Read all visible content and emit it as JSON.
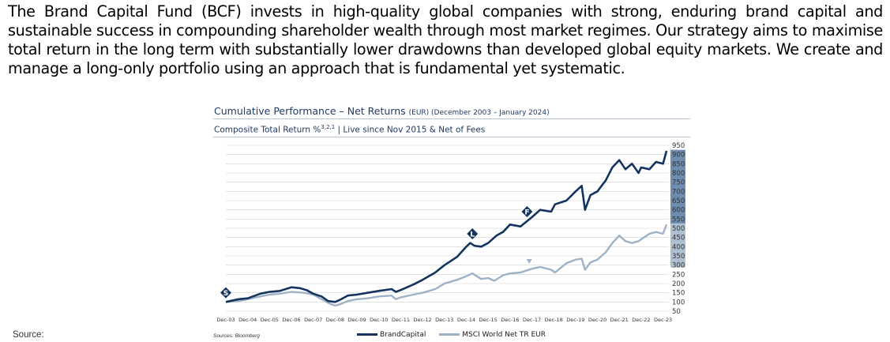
{
  "intro_text": "The Brand Capital Fund (BCF) invests in high-quality global companies with strong, enduring brand capital and sustainable success in compounding shareholder wealth through most market regimes. Our strategy aims to maximise total return in the long term with substantially lower drawdowns than developed global equity markets. We create and manage a long-only portfolio using an approach that is fundamental yet systematic.",
  "source_label": "Source:",
  "colors": {
    "brand": "#14345f",
    "msci": "#9fb2c5",
    "band_dark": "#6f8db0",
    "band_light": "#aebfd2",
    "grid": "#d0d0d0"
  },
  "chart_data": {
    "type": "line",
    "title": "Cumulative Performance – Net Returns",
    "title_small": "(EUR) (December 2003 – January 2024)",
    "subtitle_pre": "Composite Total Return %",
    "subtitle_sup": "3,2,1",
    "subtitle_post": " | Live since Nov 2015 & Net of Fees",
    "sources_note": "Sources: Bloomberg",
    "x_tick_labels": [
      "Dec-03",
      "Dec-04",
      "Dec-05",
      "Dec-06",
      "Dec-07",
      "Dec-08",
      "Dec-09",
      "Dec-10",
      "Dec-11",
      "Dec-12",
      "Dec-13",
      "Dec-14",
      "Dec-15",
      "Dec-16",
      "Dec-17",
      "Dec-18",
      "Dec-19",
      "Dec-20",
      "Dec-21",
      "Dec-22",
      "Dec-23"
    ],
    "y_ticks": [
      50,
      100,
      150,
      200,
      250,
      300,
      350,
      400,
      450,
      500,
      550,
      600,
      650,
      700,
      750,
      800,
      850,
      900,
      950
    ],
    "ylim": [
      50,
      950
    ],
    "xlim": [
      2003.92,
      2024.08
    ],
    "grid": true,
    "legend_position": "bottom",
    "series": [
      {
        "name": "BrandCapital",
        "x": [
          2003.92,
          2004.5,
          2004.92,
          2005.5,
          2005.92,
          2006.4,
          2006.92,
          2007.3,
          2007.6,
          2007.92,
          2008.3,
          2008.6,
          2008.92,
          2009.2,
          2009.5,
          2009.92,
          2010.4,
          2010.92,
          2011.5,
          2011.7,
          2011.92,
          2012.5,
          2012.92,
          2013.5,
          2013.92,
          2014.5,
          2014.92,
          2015.1,
          2015.3,
          2015.6,
          2015.92,
          2016.3,
          2016.6,
          2016.92,
          2017.4,
          2017.92,
          2018.3,
          2018.8,
          2018.98,
          2019.5,
          2019.92,
          2020.2,
          2020.35,
          2020.6,
          2020.92,
          2021.3,
          2021.6,
          2021.92,
          2022.2,
          2022.5,
          2022.8,
          2022.92,
          2023.3,
          2023.6,
          2023.92,
          2024.08
        ],
        "y": [
          100,
          115,
          120,
          145,
          155,
          160,
          180,
          175,
          165,
          145,
          130,
          105,
          100,
          115,
          135,
          140,
          150,
          160,
          170,
          155,
          165,
          195,
          220,
          260,
          300,
          345,
          400,
          420,
          405,
          400,
          420,
          460,
          480,
          520,
          510,
          560,
          600,
          590,
          630,
          650,
          700,
          730,
          600,
          680,
          700,
          760,
          830,
          870,
          820,
          850,
          800,
          830,
          820,
          860,
          850,
          920
        ]
      },
      {
        "name": "MSCI World Net TR EUR",
        "x": [
          2003.92,
          2004.5,
          2004.92,
          2005.5,
          2005.92,
          2006.4,
          2006.92,
          2007.5,
          2007.92,
          2008.3,
          2008.6,
          2008.92,
          2009.2,
          2009.5,
          2009.92,
          2010.4,
          2010.92,
          2011.5,
          2011.7,
          2011.92,
          2012.5,
          2012.92,
          2013.5,
          2013.92,
          2014.5,
          2014.92,
          2015.2,
          2015.6,
          2015.92,
          2016.2,
          2016.6,
          2016.92,
          2017.4,
          2017.92,
          2018.3,
          2018.8,
          2018.98,
          2019.5,
          2019.92,
          2020.2,
          2020.35,
          2020.6,
          2020.92,
          2021.3,
          2021.6,
          2021.92,
          2022.2,
          2022.5,
          2022.8,
          2022.92,
          2023.3,
          2023.6,
          2023.92,
          2024.08
        ],
        "y": [
          100,
          105,
          115,
          130,
          140,
          145,
          155,
          150,
          140,
          115,
          95,
          80,
          90,
          105,
          115,
          120,
          130,
          135,
          115,
          125,
          140,
          150,
          170,
          200,
          220,
          240,
          255,
          225,
          230,
          215,
          245,
          255,
          260,
          280,
          290,
          275,
          260,
          310,
          330,
          335,
          275,
          315,
          330,
          370,
          420,
          460,
          430,
          420,
          430,
          440,
          470,
          480,
          470,
          520
        ]
      }
    ],
    "markers": [
      {
        "label": "S",
        "x": 2003.92,
        "y": 150
      },
      {
        "label": "L",
        "x": 2015.2,
        "y": 470
      },
      {
        "label": "F",
        "x": 2017.7,
        "y": 590
      }
    ],
    "triangle_marker": {
      "x": 2017.8,
      "y": 320
    }
  }
}
